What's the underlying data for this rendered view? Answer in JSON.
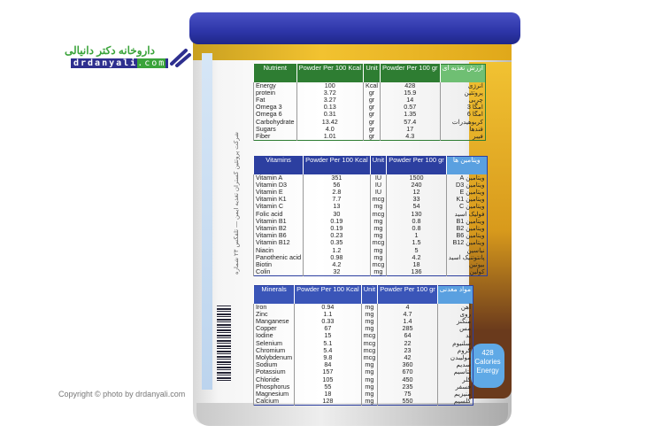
{
  "logo": {
    "fa": "داروخانه دکتر دانیالی",
    "en_main": "drdanyali",
    "en_tld": ".com"
  },
  "copyright": "Copyright © photo by drdanyali.com",
  "side_text": "شرکت پروتئین گستران تغذیه ایمن — تلفکس ۲۳ شماره",
  "badge": {
    "value": "428",
    "label1": "Calories",
    "label2": "Energy"
  },
  "headers": {
    "per_kcal": "Powder Per 100 Kcal",
    "unit": "Unit",
    "per_gr": "Powder Per 100 gr"
  },
  "nutrients": {
    "title": "Nutrient",
    "title_fa": "ارزش تغذیه ای",
    "rows": [
      [
        "Energy",
        "100",
        "Kcal",
        "428",
        "انرژی"
      ],
      [
        "protein",
        "3.72",
        "gr",
        "15.9",
        "پروتئین"
      ],
      [
        "Fat",
        "3.27",
        "gr",
        "14",
        "چربی"
      ],
      [
        "Omega 3",
        "0.13",
        "gr",
        "0.57",
        "امگا 3"
      ],
      [
        "Omega 6",
        "0.31",
        "gr",
        "1.35",
        "امگا 6"
      ],
      [
        "Carbohydrate",
        "13.42",
        "gr",
        "57.4",
        "کربوهیدرات"
      ],
      [
        "Sugars",
        "4.0",
        "gr",
        "17",
        "قندها"
      ],
      [
        "Fiber",
        "1.01",
        "gr",
        "4.3",
        "فیبر"
      ]
    ]
  },
  "vitamins": {
    "title": "Vitamins",
    "title_fa": "ویتامین ها",
    "rows": [
      [
        "Vitamin A",
        "351",
        "IU",
        "1500",
        "ویتامین A"
      ],
      [
        "Vitamin D3",
        "56",
        "IU",
        "240",
        "ویتامین D3"
      ],
      [
        "Vitamin E",
        "2.8",
        "IU",
        "12",
        "ویتامین E"
      ],
      [
        "Vitamin K1",
        "7.7",
        "mcg",
        "33",
        "ویتامین K1"
      ],
      [
        "Vitamin C",
        "13",
        "mg",
        "54",
        "ویتامین C"
      ],
      [
        "Folic acid",
        "30",
        "mcg",
        "130",
        "فولیک اسید"
      ],
      [
        "Vitamin B1",
        "0.19",
        "mg",
        "0.8",
        "ویتامین B1"
      ],
      [
        "Vitamin B2",
        "0.19",
        "mg",
        "0.8",
        "ویتامین B2"
      ],
      [
        "Vitamin B6",
        "0.23",
        "mg",
        "1",
        "ویتامین B6"
      ],
      [
        "Vitamin B12",
        "0.35",
        "mcg",
        "1.5",
        "ویتامین B12"
      ],
      [
        "Niacin",
        "1.2",
        "mg",
        "5",
        "نیاسین"
      ],
      [
        "Panothenic acid",
        "0.98",
        "mg",
        "4.2",
        "پانتوتنیک اسید"
      ],
      [
        "Biotin",
        "4.2",
        "mcg",
        "18",
        "بیوتین"
      ],
      [
        "Colin",
        "32",
        "mg",
        "136",
        "کولین"
      ]
    ]
  },
  "minerals": {
    "title": "Minerals",
    "title_fa": "مواد معدنی",
    "rows": [
      [
        "Iron",
        "0.94",
        "mg",
        "4",
        "آهن"
      ],
      [
        "Zinc",
        "1.1",
        "mg",
        "4.7",
        "روی"
      ],
      [
        "Manganese",
        "0.33",
        "mg",
        "1.4",
        "منگنز"
      ],
      [
        "Copper",
        "67",
        "mg",
        "285",
        "مس"
      ],
      [
        "Iodine",
        "15",
        "mcg",
        "64",
        "ید"
      ],
      [
        "Selenium",
        "5.1",
        "mcg",
        "22",
        "سلنیوم"
      ],
      [
        "Chromium",
        "5.4",
        "mcg",
        "23",
        "کروم"
      ],
      [
        "Molybdenum",
        "9.8",
        "mcg",
        "42",
        "مولیبدن"
      ],
      [
        "Sodium",
        "84",
        "mg",
        "360",
        "سدیم"
      ],
      [
        "Potassium",
        "157",
        "mg",
        "670",
        "پتاسیم"
      ],
      [
        "Chloride",
        "105",
        "mg",
        "450",
        "کلر"
      ],
      [
        "Phosphorus",
        "55",
        "mg",
        "235",
        "فسفر"
      ],
      [
        "Magnesium",
        "18",
        "mg",
        "75",
        "منیزیم"
      ],
      [
        "Calcium",
        "128",
        "mg",
        "550",
        "کلسیم"
      ]
    ]
  },
  "colors": {
    "lid": "#2d35a8",
    "nutrient_header": "#2e7d32",
    "vitamin_header": "#2c3fa0",
    "gold": "#f2c230"
  }
}
